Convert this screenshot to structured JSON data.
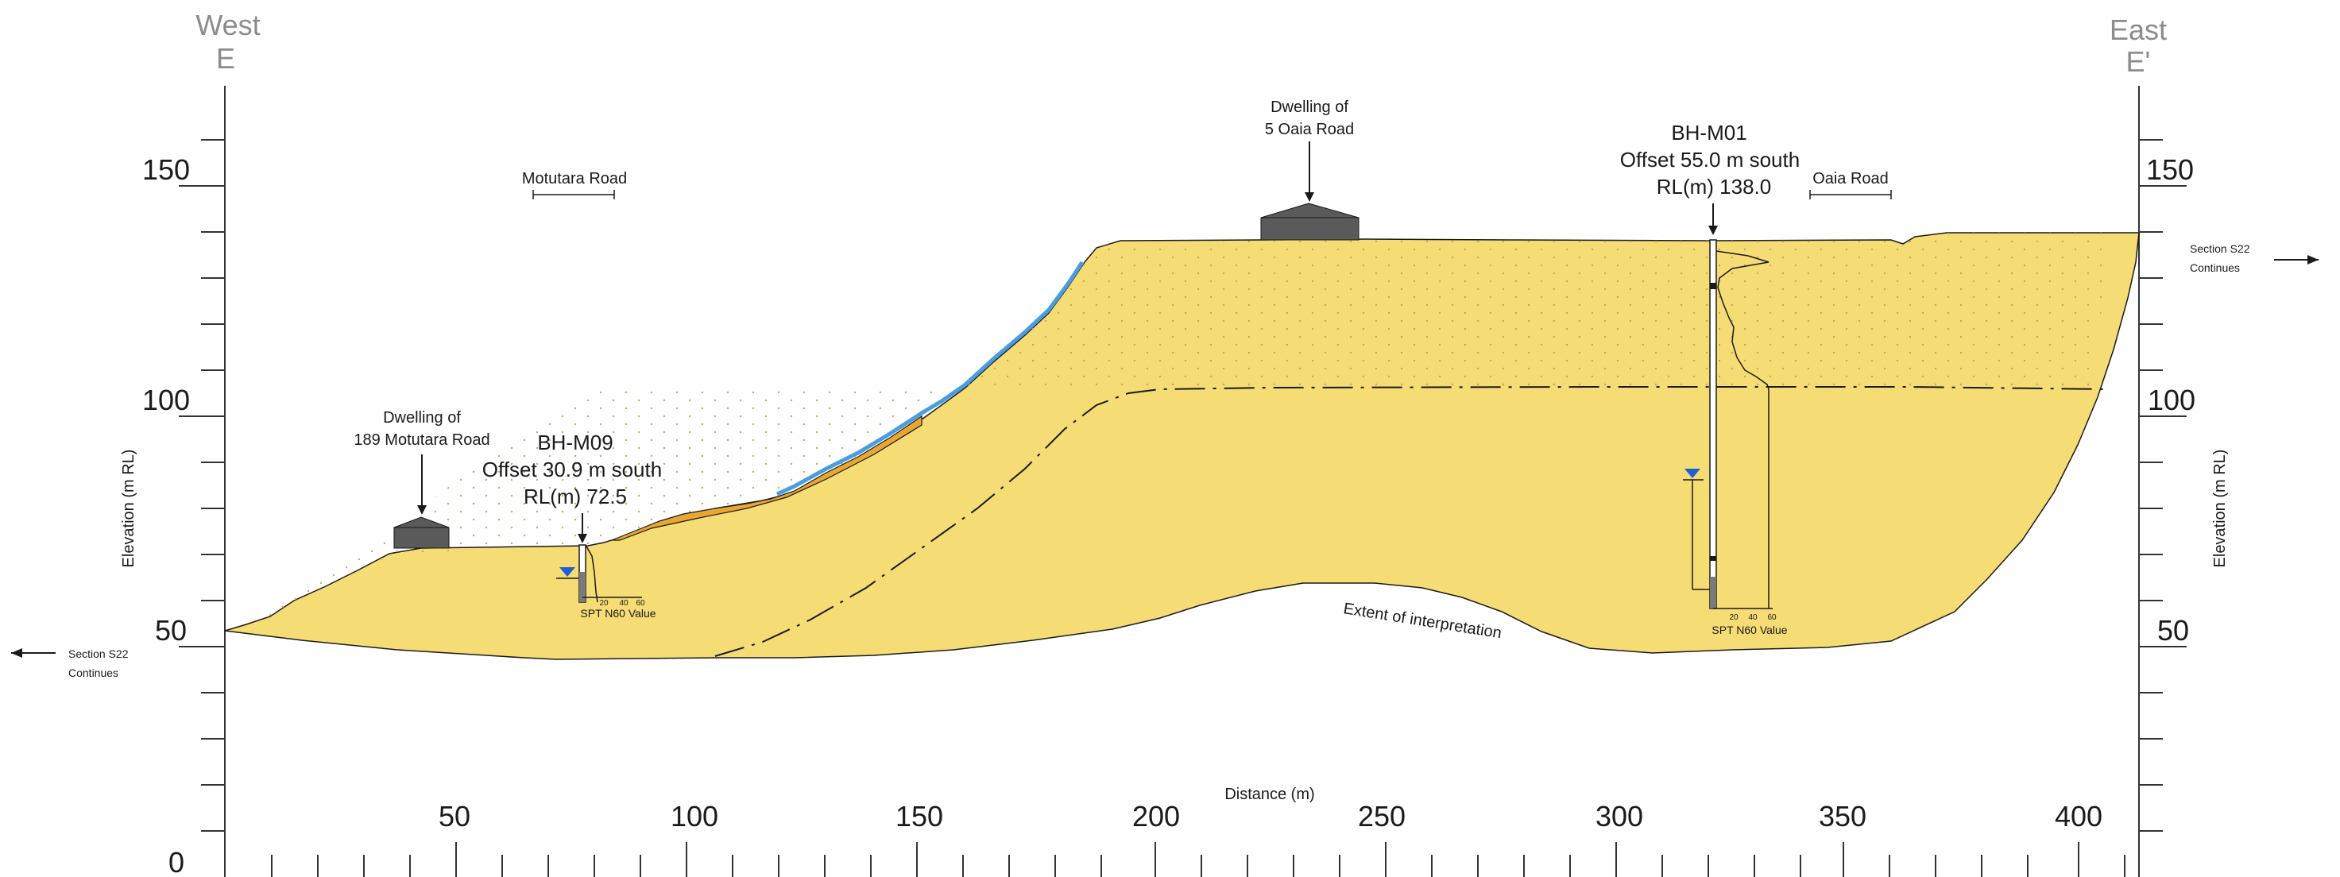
{
  "directions": {
    "west_label": "West",
    "west_code": "E",
    "east_label": "East",
    "east_code": "E'"
  },
  "axes": {
    "y_label": "Elevation (m RL)",
    "x_label": "Distance (m)",
    "y_ticks": [
      "0",
      "50",
      "100",
      "150"
    ],
    "x_ticks": [
      "50",
      "100",
      "150",
      "200",
      "250",
      "300",
      "350",
      "400"
    ]
  },
  "continuation": {
    "left_line1": "Section S22",
    "left_line2": "Continues",
    "right_line1": "Section S22",
    "right_line2": "Continues"
  },
  "roads": {
    "motutara": "Motutara Road",
    "oaia": "Oaia Road"
  },
  "dwellings": {
    "west_line1": "Dwelling of",
    "west_line2": "189 Motutara Road",
    "east_line1": "Dwelling of",
    "east_line2": "5 Oaia Road"
  },
  "boreholes": {
    "m09": {
      "name": "BH-M09",
      "offset": "Offset 30.9 m south",
      "rl": "RL(m) 72.5",
      "spt_label": "SPT N60 Value",
      "spt_ticks": [
        "20",
        "40",
        "60"
      ]
    },
    "m01": {
      "name": "BH-M01",
      "offset": "Offset 55.0 m south",
      "rl": "RL(m) 138.0",
      "spt_label": "SPT N60 Value",
      "spt_ticks": [
        "20",
        "40",
        "60"
      ]
    }
  },
  "annotations": {
    "extent": "Extent of interpretation"
  },
  "colors": {
    "soil": "#f6dc74",
    "colluvium": "#e8a733",
    "slope_water": "#4a9ee0",
    "water_marker": "#1f5fd6",
    "dwelling": "#5a5a5a"
  }
}
